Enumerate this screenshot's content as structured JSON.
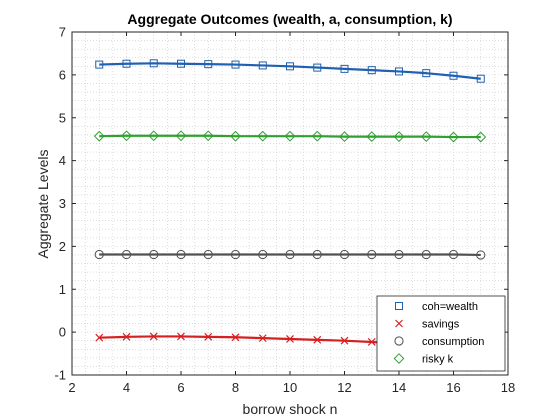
{
  "chart_data": {
    "type": "line",
    "title": "Aggregate Outcomes (wealth, a, consumption, k)",
    "xlabel": "borrow shock n",
    "ylabel": "Aggregate Levels",
    "xlim": [
      2,
      18
    ],
    "ylim": [
      -1,
      7
    ],
    "xticks": [
      "2",
      "4",
      "6",
      "8",
      "10",
      "12",
      "14",
      "16",
      "18"
    ],
    "yticks": [
      "-1",
      "0",
      "1",
      "2",
      "3",
      "4",
      "5",
      "6",
      "7"
    ],
    "grid": "minor-dotted",
    "legend_position": "bottom-right",
    "x": [
      3,
      4,
      5,
      6,
      7,
      8,
      9,
      10,
      11,
      12,
      13,
      14,
      15,
      16,
      17
    ],
    "series": [
      {
        "name": "coh=wealth",
        "marker": "square",
        "color": "#2060b0",
        "values": [
          6.24,
          6.26,
          6.27,
          6.26,
          6.25,
          6.24,
          6.22,
          6.2,
          6.17,
          6.14,
          6.11,
          6.08,
          6.04,
          5.98,
          5.91
        ]
      },
      {
        "name": "savings",
        "marker": "x",
        "color": "#d62020",
        "values": [
          -0.13,
          -0.11,
          -0.1,
          -0.1,
          -0.11,
          -0.12,
          -0.14,
          -0.16,
          -0.18,
          -0.2,
          -0.23,
          -0.27,
          -0.31,
          -0.35,
          -0.4
        ]
      },
      {
        "name": "consumption",
        "marker": "circle",
        "color": "#505050",
        "values": [
          1.81,
          1.81,
          1.81,
          1.81,
          1.81,
          1.81,
          1.81,
          1.81,
          1.81,
          1.81,
          1.81,
          1.81,
          1.81,
          1.81,
          1.8
        ]
      },
      {
        "name": "risky k",
        "marker": "diamond",
        "color": "#30a030",
        "values": [
          4.57,
          4.58,
          4.58,
          4.58,
          4.58,
          4.57,
          4.57,
          4.57,
          4.57,
          4.56,
          4.56,
          4.56,
          4.56,
          4.55,
          4.55
        ]
      }
    ]
  }
}
